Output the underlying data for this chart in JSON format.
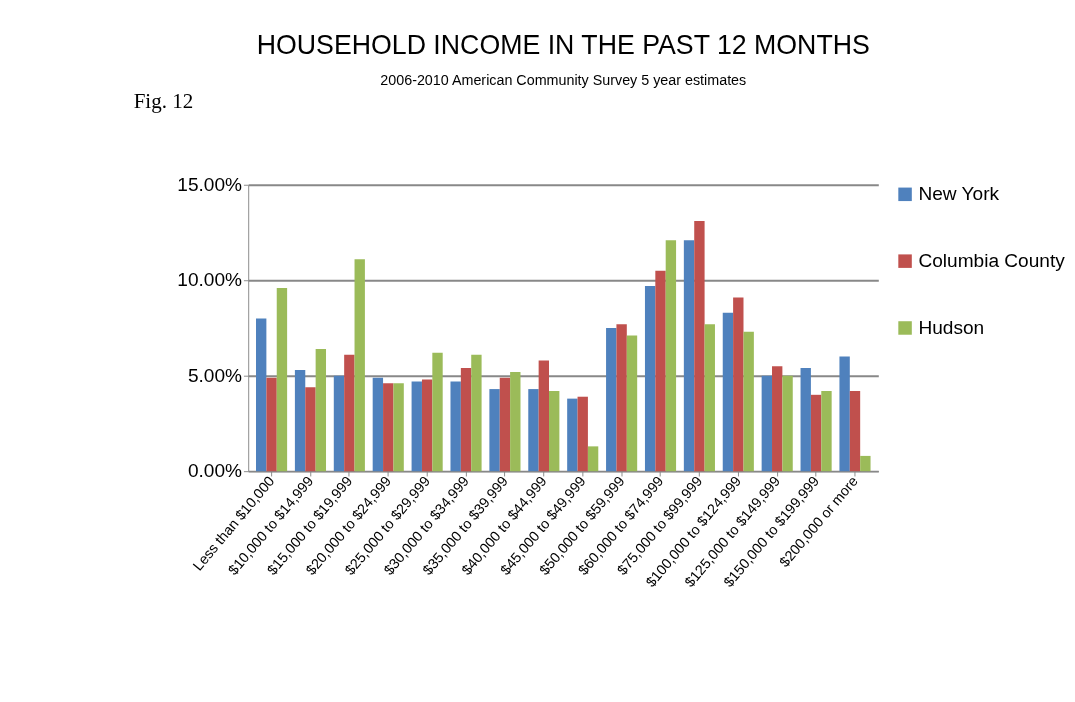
{
  "chart_data": {
    "type": "bar",
    "title": "HOUSEHOLD INCOME IN THE PAST 12 MONTHS",
    "subtitle": "2006-2010 American Community Survey 5 year estimates",
    "annotations": [
      "Fig. 12"
    ],
    "categories": [
      "Less than $10,000",
      "$10,000 to $14,999",
      "$15,000 to $19,999",
      "$20,000 to $24,999",
      "$25,000 to $29,999",
      "$30,000 to $34,999",
      "$35,000 to $39,999",
      "$40,000 to $44,999",
      "$45,000 to $49,999",
      "$50,000 to $59,999",
      "$60,000 to $74,999",
      "$75,000 to $99,999",
      "$100,000 to $124,999",
      "$125,000 to $149,999",
      "$150,000 to $199,999",
      "$200,000 or more"
    ],
    "series": [
      {
        "name": "New York",
        "color": "#4f81bd",
        "values": [
          8.0,
          5.3,
          5.0,
          4.9,
          4.7,
          4.7,
          4.3,
          4.3,
          3.8,
          7.5,
          9.7,
          12.1,
          8.3,
          5.0,
          5.4,
          6.0
        ]
      },
      {
        "name": "Columbia County",
        "color": "#c0504d",
        "values": [
          4.9,
          4.4,
          6.1,
          4.6,
          4.8,
          5.4,
          4.9,
          5.8,
          3.9,
          7.7,
          10.5,
          13.1,
          9.1,
          5.5,
          4.0,
          4.2
        ]
      },
      {
        "name": "Hudson",
        "color": "#9bbb59",
        "values": [
          9.6,
          6.4,
          11.1,
          4.6,
          6.2,
          6.1,
          5.2,
          4.2,
          1.3,
          7.1,
          12.1,
          7.7,
          7.3,
          5.0,
          4.2,
          0.8
        ]
      }
    ],
    "ylim": [
      0,
      15
    ],
    "yticks": [
      {
        "value": 0,
        "label": "0.00%"
      },
      {
        "value": 5,
        "label": "5.00%"
      },
      {
        "value": 10,
        "label": "10.00%"
      },
      {
        "value": 15,
        "label": "15.00%"
      }
    ],
    "grid": "y",
    "legend": "right"
  }
}
